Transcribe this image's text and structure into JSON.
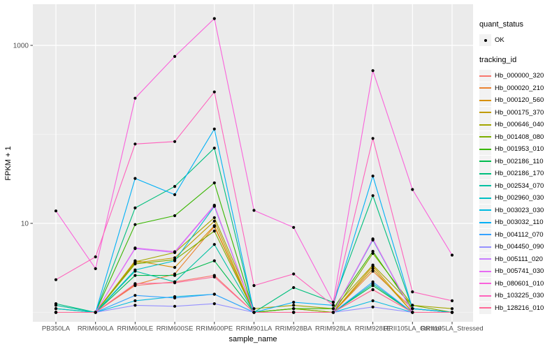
{
  "figure": {
    "background": "#FFFFFF",
    "panel_background": "#EBEBEB",
    "gridline_color": "#FFFFFF",
    "tick_color": "#333333",
    "tick_label_color": "#4D4D4D",
    "point_color": "#000000"
  },
  "legend": {
    "quant_status_title": "quant_status",
    "quant_status_items": [
      {
        "label": "OK",
        "marker": "black-point"
      }
    ],
    "tracking_title": "tracking_id"
  },
  "chart_data": {
    "type": "line",
    "title": "",
    "xlabel": "sample_name",
    "ylabel": "FPKM + 1",
    "y_scale": "log10",
    "ylim": [
      0.9,
      2300
    ],
    "grid": true,
    "legend_position": "right",
    "y_ticks": [
      {
        "label": "10",
        "value": 10
      },
      {
        "label": "1000",
        "value": 1000
      }
    ],
    "y_minor": [
      1,
      100
    ],
    "categories": [
      "PB350LA",
      "RRIM600LA",
      "RRIM600LE",
      "RRIM600SE",
      "RRIM600PE",
      "RRIM901LA",
      "RRIM928BA",
      "RRIM928LA",
      "RRIM928LE",
      "RRII105LA_Control",
      "RRII105LA_Stressed"
    ],
    "series": [
      {
        "name": "Hb_000000_320",
        "color": "#F8766D",
        "values": [
          1.0,
          1.0,
          2.0,
          2.2,
          2.6,
          1.0,
          1.0,
          1.0,
          1.8,
          1.0,
          1.0
        ]
      },
      {
        "name": "Hb_000020_210",
        "color": "#EA8331",
        "values": [
          1.0,
          1.0,
          2.05,
          2.7,
          9.2,
          1.0,
          1.1,
          1.0,
          2.9,
          1.1,
          1.0
        ]
      },
      {
        "name": "Hb_000120_560",
        "color": "#D89000",
        "values": [
          1.0,
          1.0,
          3.8,
          3.2,
          9.4,
          1.0,
          1.0,
          1.0,
          3.3,
          1.0,
          1.0
        ]
      },
      {
        "name": "Hb_000175_370",
        "color": "#C09B00",
        "values": [
          1.0,
          1.0,
          3.6,
          4.1,
          10.6,
          1.0,
          1.0,
          1.0,
          3.1,
          1.0,
          1.0
        ]
      },
      {
        "name": "Hb_000646_040",
        "color": "#A3A500",
        "values": [
          1.0,
          1.0,
          3.7,
          4.7,
          11.6,
          1.1,
          1.2,
          1.1,
          3.4,
          1.2,
          1.1
        ]
      },
      {
        "name": "Hb_001408_080",
        "color": "#7CAE00",
        "values": [
          1.0,
          1.0,
          3.5,
          3.9,
          8.2,
          1.0,
          1.1,
          1.0,
          4.6,
          1.2,
          1.0
        ]
      },
      {
        "name": "Hb_001953_010",
        "color": "#39B600",
        "values": [
          1.0,
          1.0,
          9.7,
          12.2,
          28.5,
          1.0,
          1.1,
          1.1,
          4.85,
          1.1,
          1.0
        ]
      },
      {
        "name": "Hb_002186_110",
        "color": "#00BB4E",
        "values": [
          1.1,
          1.0,
          2.6,
          2.6,
          3.8,
          1.0,
          1.0,
          1.0,
          2.0,
          1.0,
          1.0
        ]
      },
      {
        "name": "Hb_002186_170",
        "color": "#00BF7D",
        "values": [
          1.25,
          1.0,
          14.9,
          26.0,
          70.0,
          1.0,
          1.9,
          1.3,
          20.5,
          1.1,
          1.0
        ]
      },
      {
        "name": "Hb_002534_070",
        "color": "#00C1A3",
        "values": [
          1.2,
          1.0,
          2.9,
          2.2,
          5.8,
          1.0,
          1.0,
          1.0,
          2.1,
          1.0,
          1.0
        ]
      },
      {
        "name": "Hb_002960_030",
        "color": "#00BFC4",
        "values": [
          1.1,
          1.0,
          3.0,
          3.8,
          15.5,
          1.0,
          1.0,
          1.0,
          6.5,
          1.0,
          1.0
        ]
      },
      {
        "name": "Hb_003023_030",
        "color": "#00BAE0",
        "values": [
          1.0,
          1.0,
          1.35,
          1.5,
          1.6,
          1.0,
          1.0,
          1.0,
          1.35,
          1.0,
          1.0
        ]
      },
      {
        "name": "Hb_003032_110",
        "color": "#00B0F6",
        "values": [
          1.0,
          1.0,
          32.0,
          21.0,
          115.0,
          1.0,
          1.3,
          1.2,
          34.0,
          1.1,
          1.0
        ]
      },
      {
        "name": "Hb_004112_070",
        "color": "#35A2FF",
        "values": [
          1.0,
          1.0,
          1.55,
          1.45,
          1.6,
          1.0,
          1.0,
          1.0,
          2.2,
          1.0,
          1.0
        ]
      },
      {
        "name": "Hb_004450_090",
        "color": "#9590FF",
        "values": [
          1.0,
          1.0,
          1.2,
          1.17,
          1.25,
          1.0,
          1.0,
          1.0,
          1.15,
          1.0,
          1.0
        ]
      },
      {
        "name": "Hb_005111_020",
        "color": "#C77CFF",
        "values": [
          1.0,
          1.0,
          5.2,
          4.7,
          15.7,
          1.0,
          1.0,
          1.0,
          6.6,
          1.0,
          1.0
        ]
      },
      {
        "name": "Hb_005741_030",
        "color": "#E76BF3",
        "values": [
          1.0,
          1.0,
          5.3,
          4.8,
          16.0,
          1.0,
          1.0,
          1.0,
          6.7,
          1.0,
          1.0
        ]
      },
      {
        "name": "Hb_080601_010",
        "color": "#FA62DB",
        "values": [
          13.8,
          3.1,
          255,
          750,
          2000,
          14.0,
          9.0,
          1.3,
          520,
          24.0,
          4.4
        ]
      },
      {
        "name": "Hb_103225_030",
        "color": "#FF62BC",
        "values": [
          2.33,
          4.2,
          78,
          83,
          300,
          2.0,
          2.7,
          1.2,
          90,
          1.7,
          1.35
        ]
      },
      {
        "name": "Hb_128216_010",
        "color": "#FF6A98",
        "values": [
          1.0,
          1.0,
          2.1,
          2.15,
          2.5,
          1.0,
          1.0,
          1.0,
          1.8,
          1.0,
          1.0
        ]
      }
    ]
  }
}
